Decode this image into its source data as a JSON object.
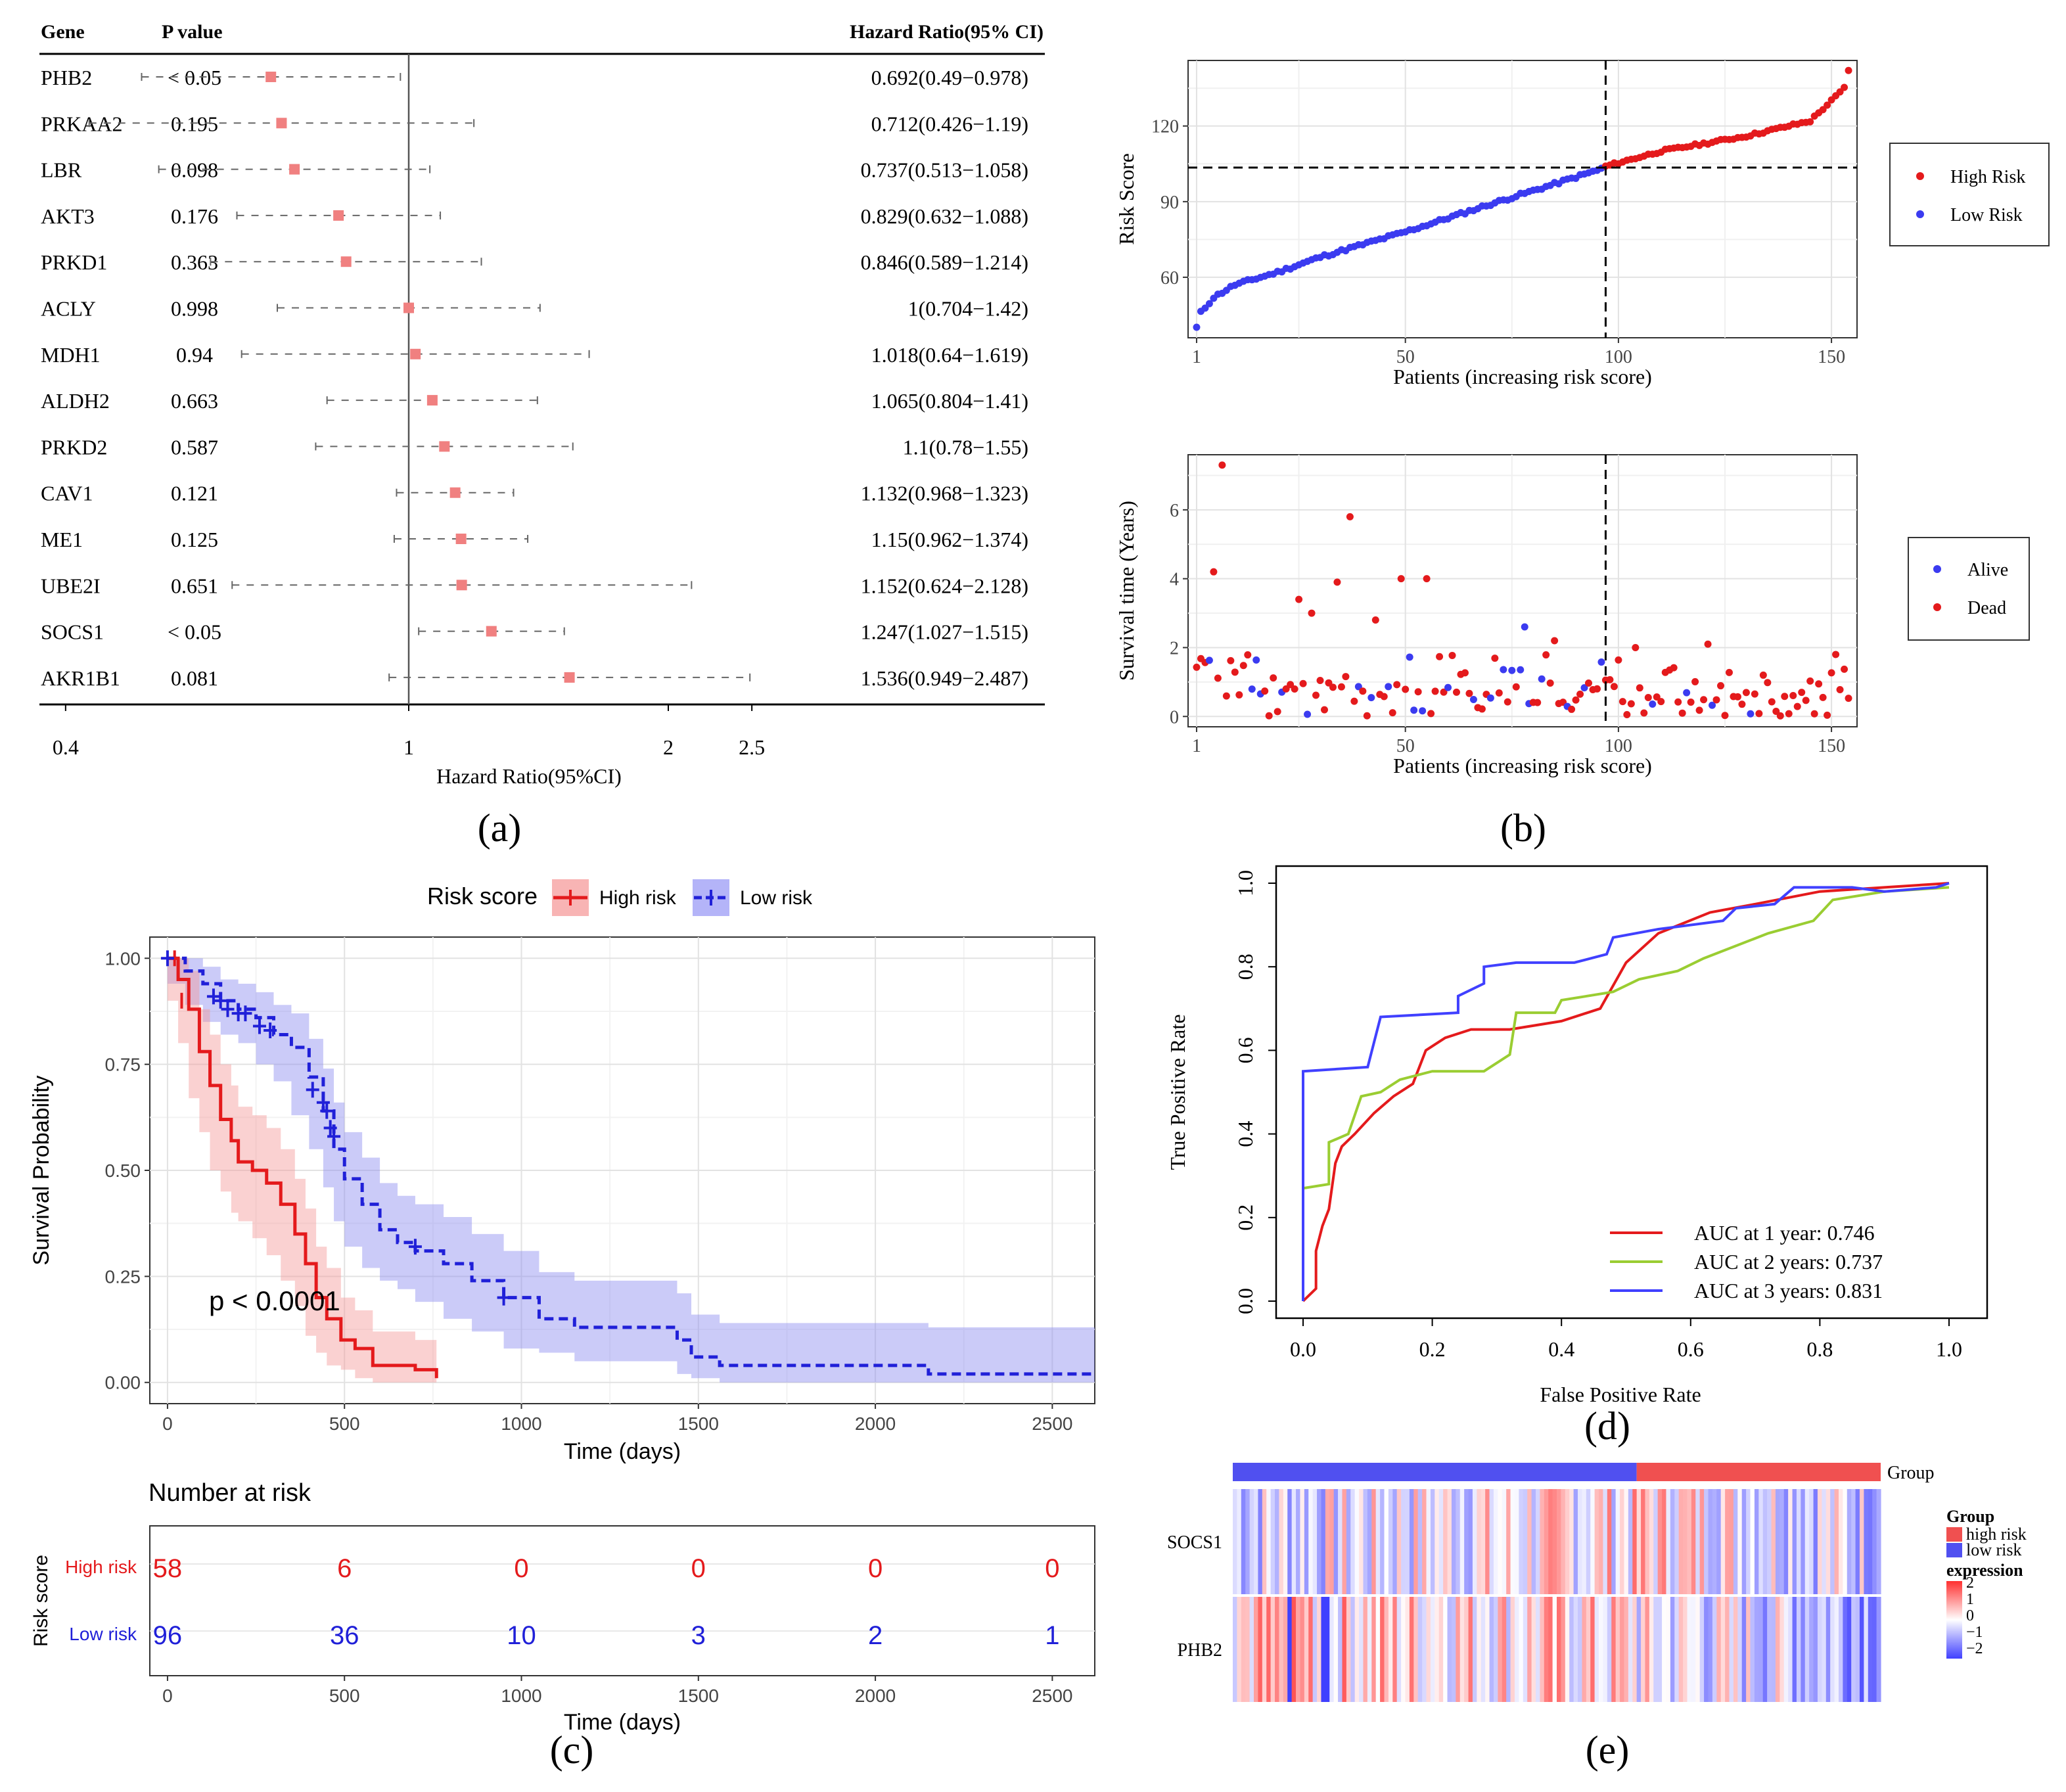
{
  "colors": {
    "red": "#e41a1c",
    "blue": "#3b3bf0",
    "pink": "#f08080",
    "green": "#9acd32",
    "roc_blue": "#4040ff"
  },
  "labels": {
    "a": "(a)",
    "b": "(b)",
    "c": "(c)",
    "d": "(d)",
    "e": "(e)"
  },
  "chart_data": [
    {
      "id": "a",
      "type": "forest",
      "headers": {
        "gene": "Gene",
        "p": "P value",
        "hr": "Hazard Ratio(95% CI)"
      },
      "xlabel": "Hazard Ratio(95%CI)",
      "xscale": "log",
      "xlim": [
        0.36,
        3.2
      ],
      "ticks": [
        {
          "v": 0.4,
          "label": "0.4"
        },
        {
          "v": 1,
          "label": "1"
        },
        {
          "v": 2,
          "label": "2"
        },
        {
          "v": 2.5,
          "label": "2.5"
        }
      ],
      "rows": [
        {
          "gene": "PHB2",
          "p": "< 0.05",
          "hr": 0.692,
          "lo": 0.49,
          "hi": 0.978,
          "label": "0.692(0.49−0.978)"
        },
        {
          "gene": "PRKAA2",
          "p": "0.195",
          "hr": 0.712,
          "lo": 0.426,
          "hi": 1.19,
          "label": "0.712(0.426−1.19)"
        },
        {
          "gene": "LBR",
          "p": "0.098",
          "hr": 0.737,
          "lo": 0.513,
          "hi": 1.058,
          "label": "0.737(0.513−1.058)"
        },
        {
          "gene": "AKT3",
          "p": "0.176",
          "hr": 0.829,
          "lo": 0.632,
          "hi": 1.088,
          "label": "0.829(0.632−1.088)"
        },
        {
          "gene": "PRKD1",
          "p": "0.363",
          "hr": 0.846,
          "lo": 0.589,
          "hi": 1.214,
          "label": "0.846(0.589−1.214)"
        },
        {
          "gene": "ACLY",
          "p": "0.998",
          "hr": 1,
          "lo": 0.704,
          "hi": 1.42,
          "label": "1(0.704−1.42)"
        },
        {
          "gene": "MDH1",
          "p": "0.94",
          "hr": 1.018,
          "lo": 0.64,
          "hi": 1.619,
          "label": "1.018(0.64−1.619)"
        },
        {
          "gene": "ALDH2",
          "p": "0.663",
          "hr": 1.065,
          "lo": 0.804,
          "hi": 1.41,
          "label": "1.065(0.804−1.41)"
        },
        {
          "gene": "PRKD2",
          "p": "0.587",
          "hr": 1.1,
          "lo": 0.78,
          "hi": 1.55,
          "label": "1.1(0.78−1.55)"
        },
        {
          "gene": "CAV1",
          "p": "0.121",
          "hr": 1.132,
          "lo": 0.968,
          "hi": 1.323,
          "label": "1.132(0.968−1.323)"
        },
        {
          "gene": "ME1",
          "p": "0.125",
          "hr": 1.15,
          "lo": 0.962,
          "hi": 1.374,
          "label": "1.15(0.962−1.374)"
        },
        {
          "gene": "UBE2I",
          "p": "0.651",
          "hr": 1.152,
          "lo": 0.624,
          "hi": 2.128,
          "label": "1.152(0.624−2.128)"
        },
        {
          "gene": "SOCS1",
          "p": "< 0.05",
          "hr": 1.247,
          "lo": 1.027,
          "hi": 1.515,
          "label": "1.247(1.027−1.515)"
        },
        {
          "gene": "AKR1B1",
          "p": "0.081",
          "hr": 1.536,
          "lo": 0.949,
          "hi": 2.487,
          "label": "1.536(0.949−2.487)"
        }
      ]
    },
    {
      "id": "b1",
      "type": "scatter",
      "xlabel": "Patients (increasing risk score)",
      "ylabel": "Risk Score",
      "xlim": [
        -1,
        156
      ],
      "ylim": [
        36,
        146
      ],
      "xticks": [
        1,
        50,
        100,
        150
      ],
      "yticks": [
        60,
        90,
        120
      ],
      "cutoff_x": 97,
      "cutoff_y": 103.5,
      "n_low": 96,
      "n_high": 58,
      "low_anchors": [
        [
          1,
          40
        ],
        [
          2,
          46
        ],
        [
          5,
          52
        ],
        [
          10,
          57
        ],
        [
          20,
          62
        ],
        [
          30,
          68
        ],
        [
          50,
          78
        ],
        [
          70,
          89
        ],
        [
          85,
          97
        ],
        [
          96,
          103
        ]
      ],
      "high_anchors": [
        [
          97,
          104
        ],
        [
          110,
          110
        ],
        [
          130,
          116
        ],
        [
          145,
          122
        ],
        [
          150,
          130
        ],
        [
          153,
          135
        ],
        [
          154,
          142
        ]
      ],
      "legend": [
        {
          "label": "High Risk",
          "color": "#e41a1c"
        },
        {
          "label": "Low Risk",
          "color": "#3b3bf0"
        }
      ]
    },
    {
      "id": "b2",
      "type": "scatter",
      "xlabel": "Patients (increasing risk score)",
      "ylabel": "Survival time (Years)",
      "xlim": [
        -1,
        156
      ],
      "ylim": [
        -0.3,
        7.6
      ],
      "xticks": [
        1,
        50,
        100,
        150
      ],
      "yticks": [
        0,
        2,
        4,
        6
      ],
      "cutoff_x": 97,
      "highlight_points": [
        [
          7,
          7.3
        ],
        [
          37,
          5.8
        ],
        [
          5,
          4.2
        ],
        [
          25,
          3.4
        ],
        [
          34,
          3.9
        ],
        [
          49,
          4.0
        ],
        [
          55,
          4.0
        ],
        [
          28,
          3.0
        ],
        [
          43,
          2.8
        ],
        [
          78,
          2.6
        ],
        [
          85,
          2.2
        ],
        [
          121,
          2.1
        ],
        [
          104,
          2.0
        ],
        [
          151,
          1.8
        ]
      ],
      "legend": [
        {
          "label": "Alive",
          "color": "#3b3bf0"
        },
        {
          "label": "Dead",
          "color": "#e41a1c"
        }
      ]
    },
    {
      "id": "c",
      "type": "km",
      "legend_title": "Risk score",
      "legend": [
        {
          "label": "High risk",
          "color": "#e41a1c"
        },
        {
          "label": "Low risk",
          "color": "#2020d8"
        }
      ],
      "xlabel": "Time (days)",
      "ylabel": "Survival Probability",
      "xlim": [
        -50,
        2620
      ],
      "ylim": [
        -0.05,
        1.05
      ],
      "xticks": [
        0,
        500,
        1000,
        1500,
        2000,
        2500
      ],
      "yticks": [
        {
          "v": 0,
          "label": "0.00"
        },
        {
          "v": 0.25,
          "label": "0.25"
        },
        {
          "v": 0.5,
          "label": "0.50"
        },
        {
          "v": 0.75,
          "label": "0.75"
        },
        {
          "v": 1,
          "label": "1.00"
        }
      ],
      "pvalue": "p < 0.0001",
      "high": [
        [
          0,
          1
        ],
        [
          30,
          0.95
        ],
        [
          60,
          0.88
        ],
        [
          90,
          0.78
        ],
        [
          120,
          0.7
        ],
        [
          150,
          0.62
        ],
        [
          180,
          0.57
        ],
        [
          200,
          0.52
        ],
        [
          240,
          0.5
        ],
        [
          280,
          0.47
        ],
        [
          320,
          0.42
        ],
        [
          360,
          0.35
        ],
        [
          390,
          0.28
        ],
        [
          420,
          0.2
        ],
        [
          450,
          0.15
        ],
        [
          490,
          0.1
        ],
        [
          530,
          0.08
        ],
        [
          580,
          0.04
        ],
        [
          700,
          0.03
        ],
        [
          760,
          0.01
        ]
      ],
      "high_band": [
        [
          0,
          1,
          1
        ],
        [
          30,
          1.0,
          0.9
        ],
        [
          60,
          0.97,
          0.8
        ],
        [
          90,
          0.88,
          0.67
        ],
        [
          120,
          0.82,
          0.59
        ],
        [
          150,
          0.75,
          0.5
        ],
        [
          180,
          0.7,
          0.45
        ],
        [
          200,
          0.65,
          0.4
        ],
        [
          240,
          0.63,
          0.38
        ],
        [
          280,
          0.6,
          0.34
        ],
        [
          320,
          0.55,
          0.3
        ],
        [
          360,
          0.48,
          0.24
        ],
        [
          390,
          0.41,
          0.18
        ],
        [
          420,
          0.32,
          0.11
        ],
        [
          450,
          0.27,
          0.07
        ],
        [
          490,
          0.2,
          0.04
        ],
        [
          530,
          0.17,
          0.03
        ],
        [
          580,
          0.12,
          0.01
        ],
        [
          700,
          0.1,
          0.0
        ],
        [
          760,
          0.06,
          0.0
        ]
      ],
      "low": [
        [
          0,
          1
        ],
        [
          50,
          0.97
        ],
        [
          100,
          0.94
        ],
        [
          150,
          0.9
        ],
        [
          200,
          0.88
        ],
        [
          250,
          0.86
        ],
        [
          300,
          0.82
        ],
        [
          350,
          0.79
        ],
        [
          400,
          0.72
        ],
        [
          440,
          0.64
        ],
        [
          470,
          0.55
        ],
        [
          500,
          0.48
        ],
        [
          550,
          0.42
        ],
        [
          600,
          0.36
        ],
        [
          650,
          0.33
        ],
        [
          700,
          0.31
        ],
        [
          780,
          0.28
        ],
        [
          860,
          0.24
        ],
        [
          950,
          0.2
        ],
        [
          1050,
          0.15
        ],
        [
          1150,
          0.13
        ],
        [
          1440,
          0.1
        ],
        [
          1480,
          0.06
        ],
        [
          1560,
          0.04
        ],
        [
          2150,
          0.02
        ],
        [
          2620,
          0.02
        ]
      ],
      "low_band": [
        [
          0,
          1,
          1
        ],
        [
          50,
          1.0,
          0.94
        ],
        [
          100,
          0.98,
          0.89
        ],
        [
          150,
          0.95,
          0.85
        ],
        [
          200,
          0.94,
          0.82
        ],
        [
          250,
          0.92,
          0.8
        ],
        [
          300,
          0.89,
          0.75
        ],
        [
          350,
          0.87,
          0.71
        ],
        [
          400,
          0.81,
          0.63
        ],
        [
          440,
          0.74,
          0.55
        ],
        [
          470,
          0.66,
          0.46
        ],
        [
          500,
          0.59,
          0.38
        ],
        [
          550,
          0.53,
          0.32
        ],
        [
          600,
          0.47,
          0.27
        ],
        [
          650,
          0.44,
          0.24
        ],
        [
          700,
          0.42,
          0.22
        ],
        [
          780,
          0.39,
          0.19
        ],
        [
          860,
          0.35,
          0.15
        ],
        [
          950,
          0.31,
          0.12
        ],
        [
          1050,
          0.26,
          0.08
        ],
        [
          1150,
          0.24,
          0.07
        ],
        [
          1440,
          0.21,
          0.05
        ],
        [
          1480,
          0.16,
          0.02
        ],
        [
          1560,
          0.14,
          0.01
        ],
        [
          2150,
          0.13,
          0.0
        ],
        [
          2620,
          0.13,
          0.0
        ]
      ],
      "risk_table": {
        "title": "Number at risk",
        "ylabel": "Risk score",
        "rows": [
          {
            "label": "High risk",
            "color": "#e41a1c",
            "values": [
              58,
              6,
              0,
              0,
              0,
              0
            ]
          },
          {
            "label": "Low risk",
            "color": "#2020d8",
            "values": [
              96,
              36,
              10,
              3,
              2,
              1
            ]
          }
        ],
        "times": [
          0,
          500,
          1000,
          1500,
          2000,
          2500
        ],
        "xlabel": "Time (days)"
      }
    },
    {
      "id": "d",
      "type": "roc",
      "xlabel": "False Positive Rate",
      "ylabel": "True Positive Rate",
      "xlim": [
        -0.03,
        1.03
      ],
      "ylim": [
        -0.03,
        1.03
      ],
      "xticks": [
        0,
        0.2,
        0.4,
        0.6,
        0.8,
        1
      ],
      "yticks": [
        0,
        0.2,
        0.4,
        0.6,
        0.8,
        1
      ],
      "series": [
        {
          "name": "AUC at 1 year: 0.746",
          "color": "#e41a1c",
          "points": [
            [
              0,
              0
            ],
            [
              0.02,
              0.03
            ],
            [
              0.02,
              0.12
            ],
            [
              0.03,
              0.18
            ],
            [
              0.04,
              0.22
            ],
            [
              0.05,
              0.33
            ],
            [
              0.06,
              0.37
            ],
            [
              0.08,
              0.4
            ],
            [
              0.11,
              0.45
            ],
            [
              0.14,
              0.49
            ],
            [
              0.17,
              0.52
            ],
            [
              0.19,
              0.6
            ],
            [
              0.22,
              0.63
            ],
            [
              0.26,
              0.65
            ],
            [
              0.32,
              0.65
            ],
            [
              0.4,
              0.67
            ],
            [
              0.46,
              0.7
            ],
            [
              0.5,
              0.81
            ],
            [
              0.55,
              0.88
            ],
            [
              0.63,
              0.93
            ],
            [
              0.7,
              0.95
            ],
            [
              0.8,
              0.98
            ],
            [
              0.9,
              0.99
            ],
            [
              1,
              1
            ]
          ]
        },
        {
          "name": "AUC at 2 years: 0.737",
          "color": "#9acd32",
          "points": [
            [
              0,
              0.27
            ],
            [
              0.04,
              0.28
            ],
            [
              0.04,
              0.38
            ],
            [
              0.07,
              0.4
            ],
            [
              0.09,
              0.49
            ],
            [
              0.12,
              0.5
            ],
            [
              0.15,
              0.53
            ],
            [
              0.2,
              0.55
            ],
            [
              0.28,
              0.55
            ],
            [
              0.32,
              0.59
            ],
            [
              0.33,
              0.69
            ],
            [
              0.39,
              0.69
            ],
            [
              0.4,
              0.72
            ],
            [
              0.48,
              0.74
            ],
            [
              0.52,
              0.77
            ],
            [
              0.58,
              0.79
            ],
            [
              0.62,
              0.82
            ],
            [
              0.72,
              0.88
            ],
            [
              0.79,
              0.91
            ],
            [
              0.82,
              0.96
            ],
            [
              0.9,
              0.98
            ],
            [
              1,
              0.99
            ]
          ]
        },
        {
          "name": "AUC at 3 years: 0.831",
          "color": "#4040ff",
          "points": [
            [
              0,
              0
            ],
            [
              0,
              0.55
            ],
            [
              0.1,
              0.56
            ],
            [
              0.11,
              0.62
            ],
            [
              0.12,
              0.68
            ],
            [
              0.24,
              0.69
            ],
            [
              0.24,
              0.73
            ],
            [
              0.28,
              0.76
            ],
            [
              0.28,
              0.8
            ],
            [
              0.33,
              0.81
            ],
            [
              0.42,
              0.81
            ],
            [
              0.47,
              0.83
            ],
            [
              0.48,
              0.87
            ],
            [
              0.55,
              0.89
            ],
            [
              0.65,
              0.91
            ],
            [
              0.67,
              0.94
            ],
            [
              0.73,
              0.95
            ],
            [
              0.76,
              0.99
            ],
            [
              0.85,
              0.99
            ],
            [
              0.9,
              0.98
            ],
            [
              0.98,
              0.99
            ],
            [
              1,
              1
            ]
          ]
        }
      ]
    },
    {
      "id": "e",
      "type": "heatmap",
      "group_label": "Group",
      "genes": [
        "SOCS1",
        "PHB2"
      ],
      "n_low": 96,
      "n_high": 58,
      "legend_group_title": "Group",
      "legend_group": [
        {
          "label": "high risk",
          "color": "#f05050"
        },
        {
          "label": "low risk",
          "color": "#5050f0"
        }
      ],
      "legend_expr_title": "expression",
      "legend_expr_ticks": [
        "2",
        "1",
        "0",
        "−1",
        "−2"
      ],
      "colors": {
        "low": "#4040ff",
        "mid": "#ffffff",
        "high": "#ff3030",
        "group_low": "#5050f0",
        "group_high": "#f05050"
      }
    }
  ]
}
